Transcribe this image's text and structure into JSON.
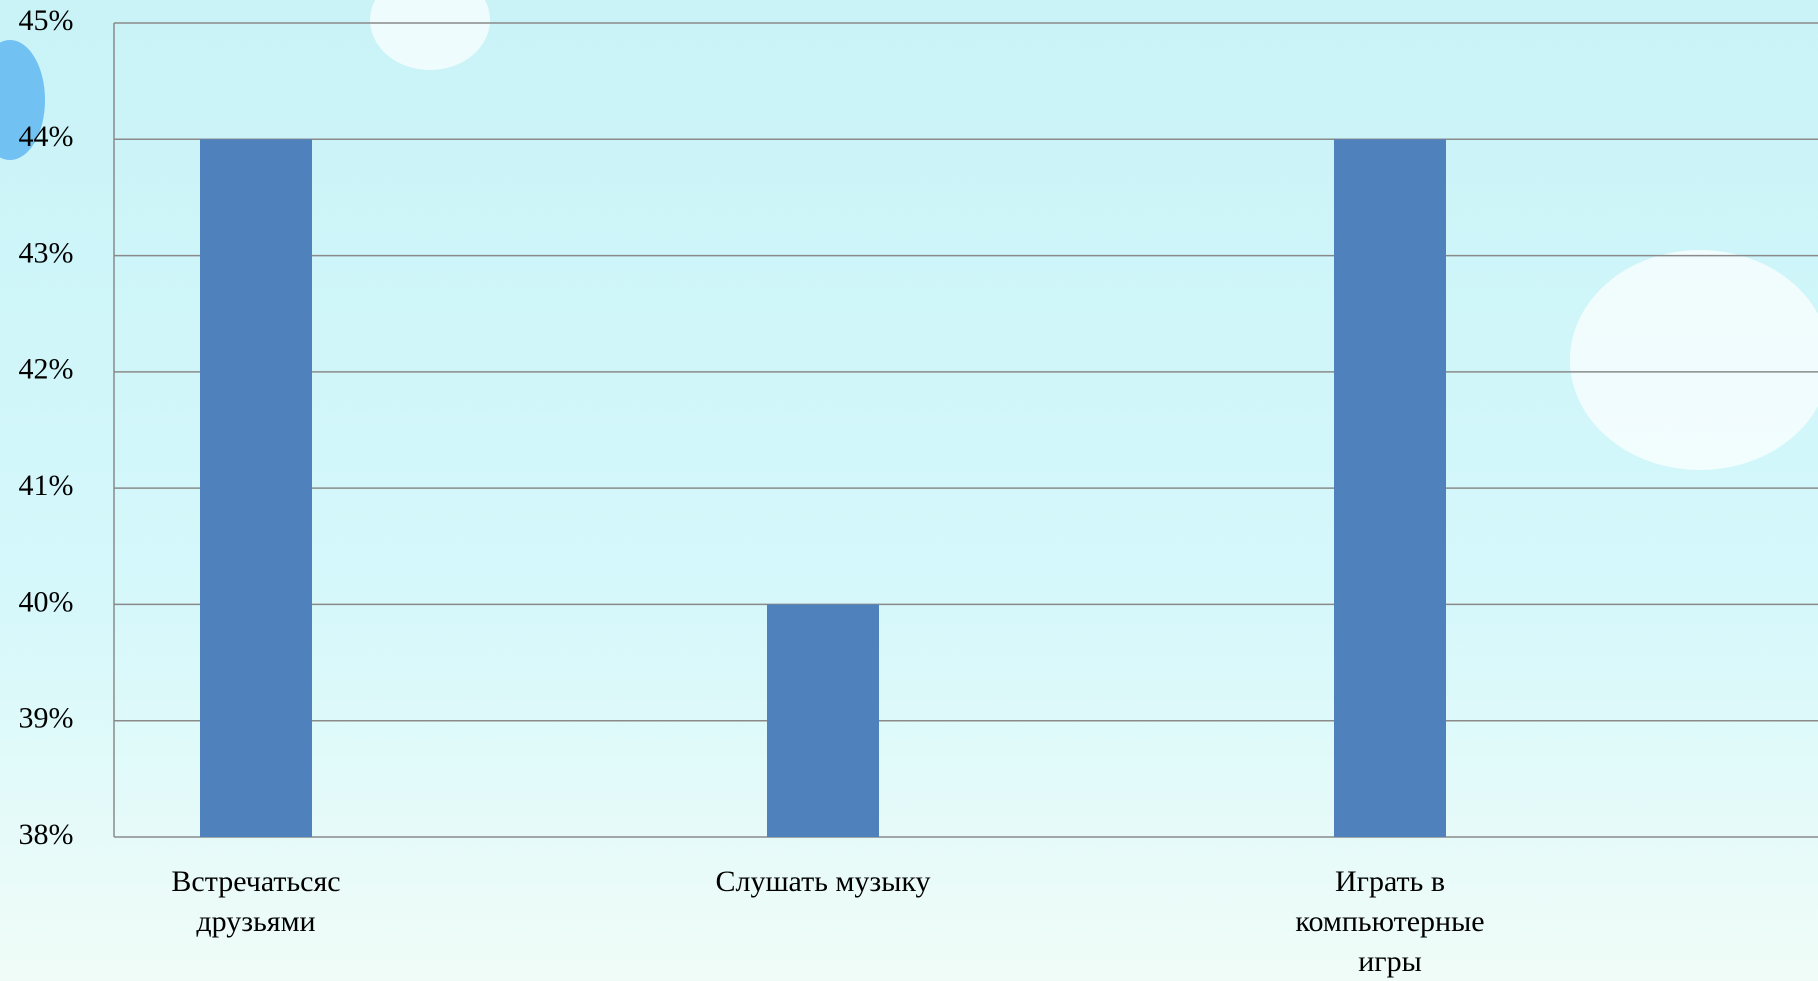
{
  "chart_data": {
    "type": "bar",
    "categories": [
      "Встречатьсяс друзьями",
      "Слушать музыку",
      "Играть в компьютерные игры"
    ],
    "values": [
      44,
      40,
      44
    ],
    "color": "#4f81bd",
    "ylim": [
      38,
      45
    ],
    "yticks": [
      {
        "value": 38,
        "label": "38%"
      },
      {
        "value": 39,
        "label": "39%"
      },
      {
        "value": 40,
        "label": "40%"
      },
      {
        "value": 41,
        "label": "41%"
      },
      {
        "value": 42,
        "label": "42%"
      },
      {
        "value": 43,
        "label": "43%"
      },
      {
        "value": 44,
        "label": "44%"
      },
      {
        "value": 45,
        "label": "45%"
      }
    ],
    "grid": true
  }
}
